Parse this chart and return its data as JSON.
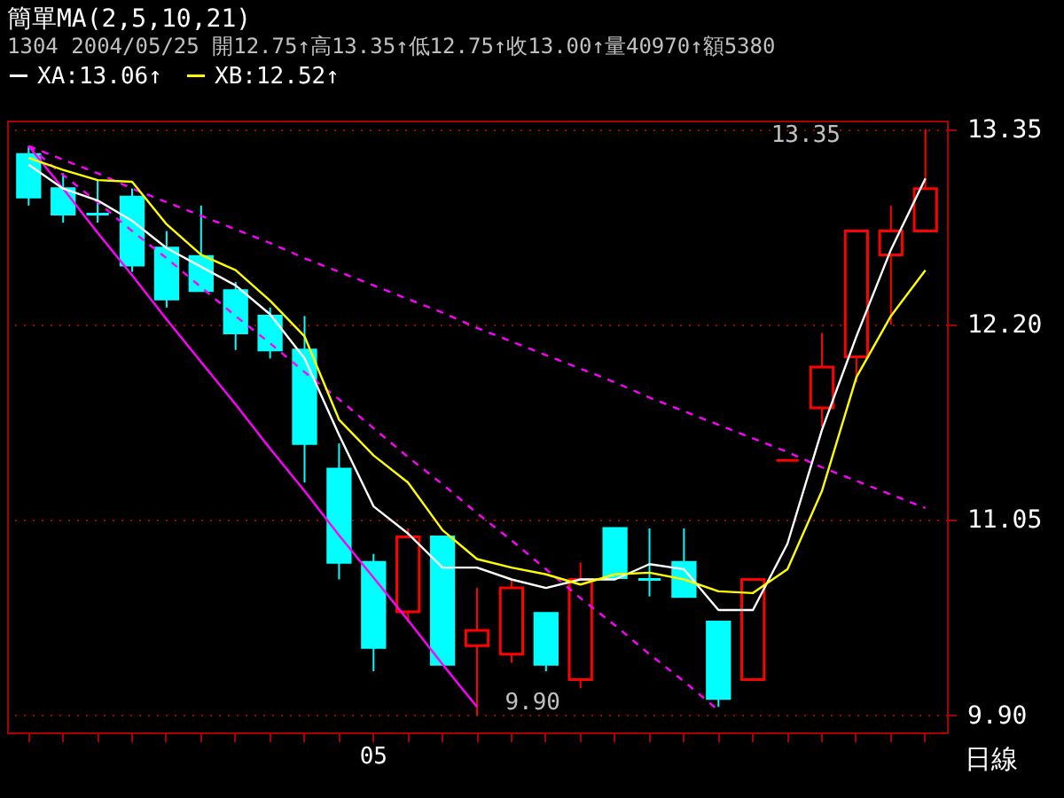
{
  "chart_data": {
    "type": "candlestick",
    "title": "簡單MA(2,5,10,21)",
    "subtitle": "1304 2004/05/25 開12.75↑高13.35↑低12.75↑收13.00↑量40970↑額5380",
    "categories": [
      null,
      null,
      null,
      null,
      null,
      null,
      null,
      null,
      null,
      null,
      "05",
      null,
      null,
      null,
      null,
      null,
      null,
      null,
      null,
      null,
      null,
      null,
      null,
      null,
      null,
      null,
      null
    ],
    "ohlc": [
      [
        13.2,
        13.25,
        12.9,
        12.95
      ],
      [
        13.0,
        13.09,
        12.8,
        12.85
      ],
      [
        12.85,
        13.05,
        12.8,
        12.85
      ],
      [
        12.95,
        13.0,
        12.51,
        12.55
      ],
      [
        12.65,
        12.75,
        12.3,
        12.35
      ],
      [
        12.6,
        12.9,
        12.4,
        12.4
      ],
      [
        12.4,
        12.45,
        12.05,
        12.15
      ],
      [
        12.25,
        12.3,
        12.0,
        12.05
      ],
      [
        12.05,
        12.25,
        11.27,
        11.5
      ],
      [
        11.35,
        11.5,
        10.7,
        10.8
      ],
      [
        10.8,
        10.85,
        10.16,
        10.3
      ],
      [
        10.51,
        11.0,
        10.45,
        10.95
      ],
      [
        10.95,
        10.95,
        10.2,
        10.2
      ],
      [
        10.31,
        10.65,
        9.9,
        10.4
      ],
      [
        10.26,
        10.7,
        10.21,
        10.65
      ],
      [
        10.5,
        10.5,
        10.16,
        10.2
      ],
      [
        10.11,
        10.8,
        10.06,
        10.7
      ],
      [
        11.0,
        11.0,
        10.71,
        10.71
      ],
      [
        10.7,
        11.0,
        10.6,
        10.7
      ],
      [
        10.8,
        11.0,
        10.6,
        10.6
      ],
      [
        10.45,
        10.45,
        9.95,
        10.0
      ],
      [
        10.11,
        10.7,
        10.11,
        10.7
      ],
      [
        11.4,
        11.4,
        11.4,
        11.4
      ],
      [
        11.71,
        12.15,
        11.6,
        11.95
      ],
      [
        12.01,
        12.75,
        11.86,
        12.75
      ],
      [
        12.61,
        12.9,
        12.2,
        12.75
      ],
      [
        12.75,
        13.35,
        12.75,
        13.0
      ]
    ],
    "colors": [
      "#00ffff",
      "#00ffff",
      "#00ffff",
      "#00ffff",
      "#00ffff",
      "#00ffff",
      "#00ffff",
      "#00ffff",
      "#00ffff",
      "#00ffff",
      "#00ffff",
      "#ff0000",
      "#00ffff",
      "#ff0000",
      "#ff0000",
      "#00ffff",
      "#ff0000",
      "#00ffff",
      "#00ffff",
      "#00ffff",
      "#00ffff",
      "#ff0000",
      "#ff0000",
      "#ff0000",
      "#ff0000",
      "#ff0000",
      "#ff0000"
    ],
    "series": [
      {
        "name": "XA:13.06↑",
        "type": "line",
        "color": "#ffffff",
        "line_style": "solid",
        "values": [
          13.14,
          13.0,
          12.93,
          12.81,
          12.65,
          12.54,
          12.43,
          12.26,
          12.0,
          11.55,
          11.13,
          10.97,
          10.77,
          10.77,
          10.7,
          10.65,
          10.7,
          10.7,
          10.79,
          10.76,
          10.52,
          10.52,
          10.91,
          11.58,
          12.13,
          12.64,
          13.06
        ]
      },
      {
        "name": "XB:12.52↑",
        "type": "line",
        "color": "#ffff00",
        "line_style": "solid",
        "values": [
          13.18,
          13.11,
          13.05,
          13.04,
          12.79,
          12.61,
          12.52,
          12.34,
          12.13,
          11.64,
          11.43,
          11.27,
          10.99,
          10.82,
          10.77,
          10.73,
          10.67,
          10.73,
          10.74,
          10.7,
          10.63,
          10.62,
          10.76,
          11.22,
          11.89,
          12.25,
          12.52
        ]
      },
      {
        "type": "line",
        "color": "#ff00ff",
        "line_style": "solid",
        "values": [
          13.25,
          13.0,
          12.74,
          12.49,
          12.23,
          11.98,
          11.73,
          11.47,
          11.22,
          10.96,
          10.71,
          10.46,
          10.2,
          9.95,
          null,
          null,
          null,
          null,
          null,
          null,
          null,
          null,
          null,
          null,
          null,
          null,
          null
        ]
      },
      {
        "type": "line",
        "color": "#ff00ff",
        "line_style": "dashed",
        "values": [
          13.25,
          13.08,
          12.92,
          12.75,
          12.59,
          12.42,
          12.25,
          12.09,
          11.92,
          11.76,
          11.59,
          11.42,
          11.26,
          11.09,
          10.93,
          10.76,
          10.59,
          10.43,
          10.26,
          10.1,
          9.93,
          null,
          null,
          null,
          null,
          null,
          null
        ]
      },
      {
        "type": "line",
        "color": "#ff00ff",
        "line_style": "dashed",
        "values": [
          13.25,
          13.17,
          13.09,
          13.0,
          12.92,
          12.84,
          12.76,
          12.68,
          12.59,
          12.51,
          12.43,
          12.35,
          12.27,
          12.18,
          12.1,
          12.02,
          11.94,
          11.86,
          11.77,
          11.69,
          11.61,
          11.53,
          11.45,
          11.36,
          11.28,
          11.2,
          11.12
        ]
      }
    ],
    "ylim": [
      9.8,
      13.4
    ],
    "yticks": [
      {
        "value": 9.9,
        "label": "9.90"
      },
      {
        "value": 11.05,
        "label": "11.05"
      },
      {
        "value": 12.2,
        "label": "12.20"
      },
      {
        "value": 13.35,
        "label": "13.35"
      }
    ],
    "grid": "y",
    "legend": "top",
    "marker": "none",
    "annotations": [
      "13.35",
      "9.90",
      "日線"
    ]
  }
}
